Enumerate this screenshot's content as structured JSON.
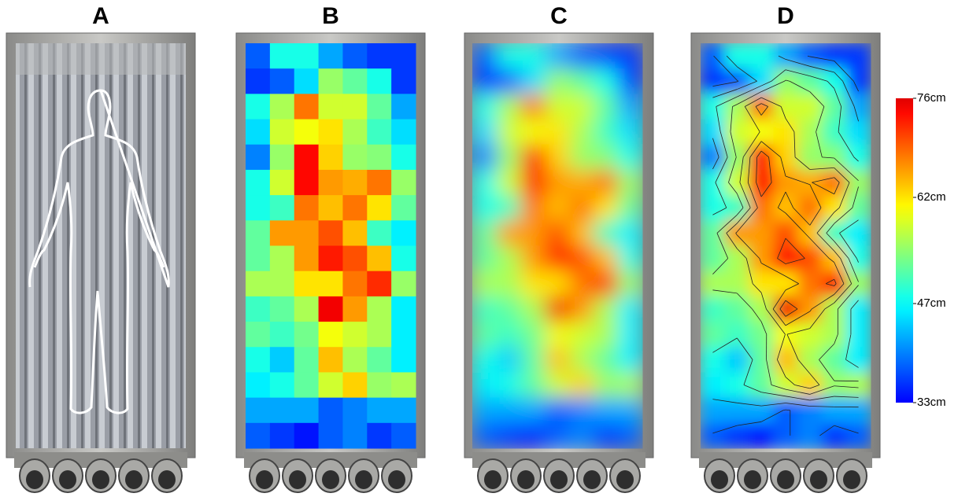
{
  "panel_labels": [
    "A",
    "B",
    "C",
    "D"
  ],
  "chart_data": {
    "type": "heatmap",
    "colormap": "jet",
    "values": [
      [
        38,
        48,
        48,
        42,
        38,
        36,
        36
      ],
      [
        36,
        38,
        45,
        55,
        52,
        48,
        36
      ],
      [
        48,
        56,
        68,
        58,
        58,
        52,
        42
      ],
      [
        45,
        58,
        60,
        62,
        56,
        50,
        45
      ],
      [
        40,
        55,
        74,
        63,
        55,
        54,
        48
      ],
      [
        48,
        58,
        74,
        66,
        65,
        68,
        55
      ],
      [
        48,
        50,
        68,
        64,
        68,
        62,
        52
      ],
      [
        52,
        66,
        66,
        70,
        64,
        50,
        46
      ],
      [
        52,
        56,
        66,
        73,
        70,
        64,
        48
      ],
      [
        56,
        56,
        62,
        62,
        68,
        72,
        55
      ],
      [
        50,
        52,
        56,
        75,
        66,
        56,
        46
      ],
      [
        52,
        50,
        53,
        60,
        58,
        56,
        46
      ],
      [
        48,
        44,
        52,
        64,
        56,
        52,
        46
      ],
      [
        46,
        48,
        52,
        58,
        63,
        55,
        56
      ],
      [
        42,
        42,
        42,
        38,
        40,
        42,
        42
      ],
      [
        38,
        36,
        34,
        38,
        40,
        36,
        38
      ]
    ],
    "zlim": [
      33,
      76
    ],
    "zticks": [
      {
        "value": 76,
        "label": "76cm"
      },
      {
        "value": 62,
        "label": "62cm"
      },
      {
        "value": 47,
        "label": "47cm"
      },
      {
        "value": 33,
        "label": "33cm"
      }
    ]
  }
}
